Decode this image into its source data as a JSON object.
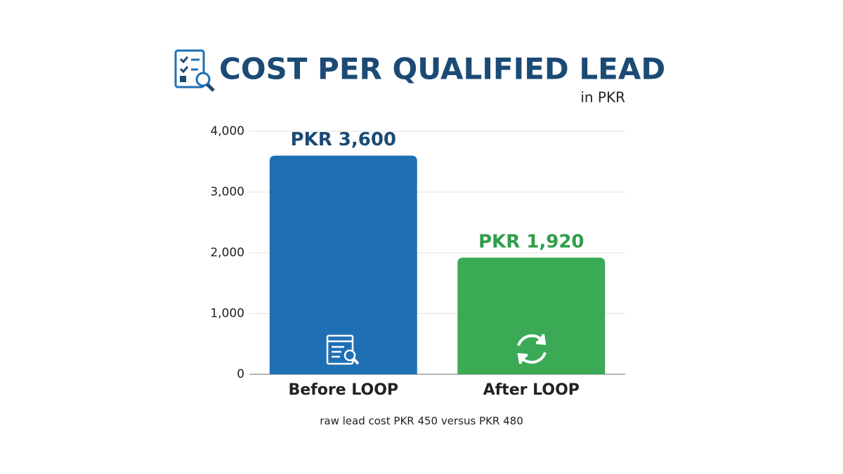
{
  "chart_data": {
    "type": "bar",
    "title": "COST PER QUALIFIED LEAD",
    "subtitle": "in PKR",
    "categories": [
      "Before LOOP",
      "After LOOP"
    ],
    "values": [
      3600,
      1920
    ],
    "value_labels": [
      "PKR 3,600",
      "PKR 1,920"
    ],
    "colors": [
      "#1f6fb4",
      "#3aaa55"
    ],
    "value_label_colors": [
      "#1b4a75",
      "#2f9e4a"
    ],
    "ylim": [
      0,
      4000
    ],
    "yticks": [
      0,
      {
        "value": 1000,
        "label": "1,000"
      },
      {
        "value": 2000,
        "label": "2,000"
      },
      {
        "value": 3000,
        "label": "3,000"
      },
      {
        "value": 4000,
        "label": "4,000"
      }
    ],
    "grid": true,
    "note": "raw lead cost PKR 450 versus PKR 480"
  }
}
